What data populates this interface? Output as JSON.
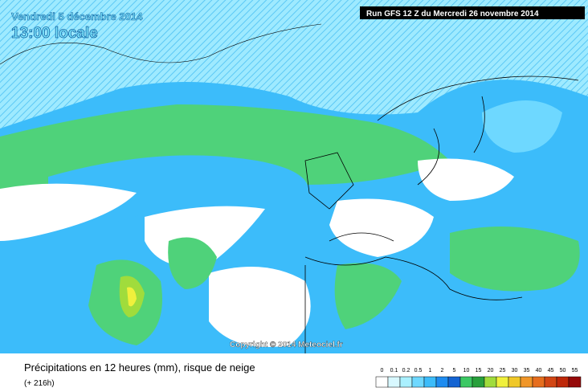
{
  "header": {
    "date": "Vendredi 5 décembre 2014",
    "time": "13:00 locale",
    "run": "Run GFS 12 Z du Mercredi 26 novembre 2014"
  },
  "copyright": "Copyright © 2014 Meteociel.fr",
  "footer": {
    "title": "Précipitations en 12 heures (mm), risque de neige",
    "lead": "(+ 216h)"
  },
  "legend": {
    "items": [
      {
        "label": "0",
        "color": "#ffffff"
      },
      {
        "label": "0.1",
        "color": "#d8f8ff"
      },
      {
        "label": "0.2",
        "color": "#aaf0ff"
      },
      {
        "label": "0.5",
        "color": "#6ed8ff"
      },
      {
        "label": "1",
        "color": "#3cbcfa"
      },
      {
        "label": "2",
        "color": "#1e8cf0"
      },
      {
        "label": "5",
        "color": "#1464d2"
      },
      {
        "label": "10",
        "color": "#3cc864"
      },
      {
        "label": "15",
        "color": "#28a03c"
      },
      {
        "label": "20",
        "color": "#a0dc3c"
      },
      {
        "label": "25",
        "color": "#f0f03c"
      },
      {
        "label": "30",
        "color": "#f0c828"
      },
      {
        "label": "35",
        "color": "#f09628"
      },
      {
        "label": "40",
        "color": "#e66e1e"
      },
      {
        "label": "45",
        "color": "#d24614"
      },
      {
        "label": "50",
        "color": "#be280a"
      },
      {
        "label": "55",
        "color": "#960a0a"
      }
    ]
  }
}
